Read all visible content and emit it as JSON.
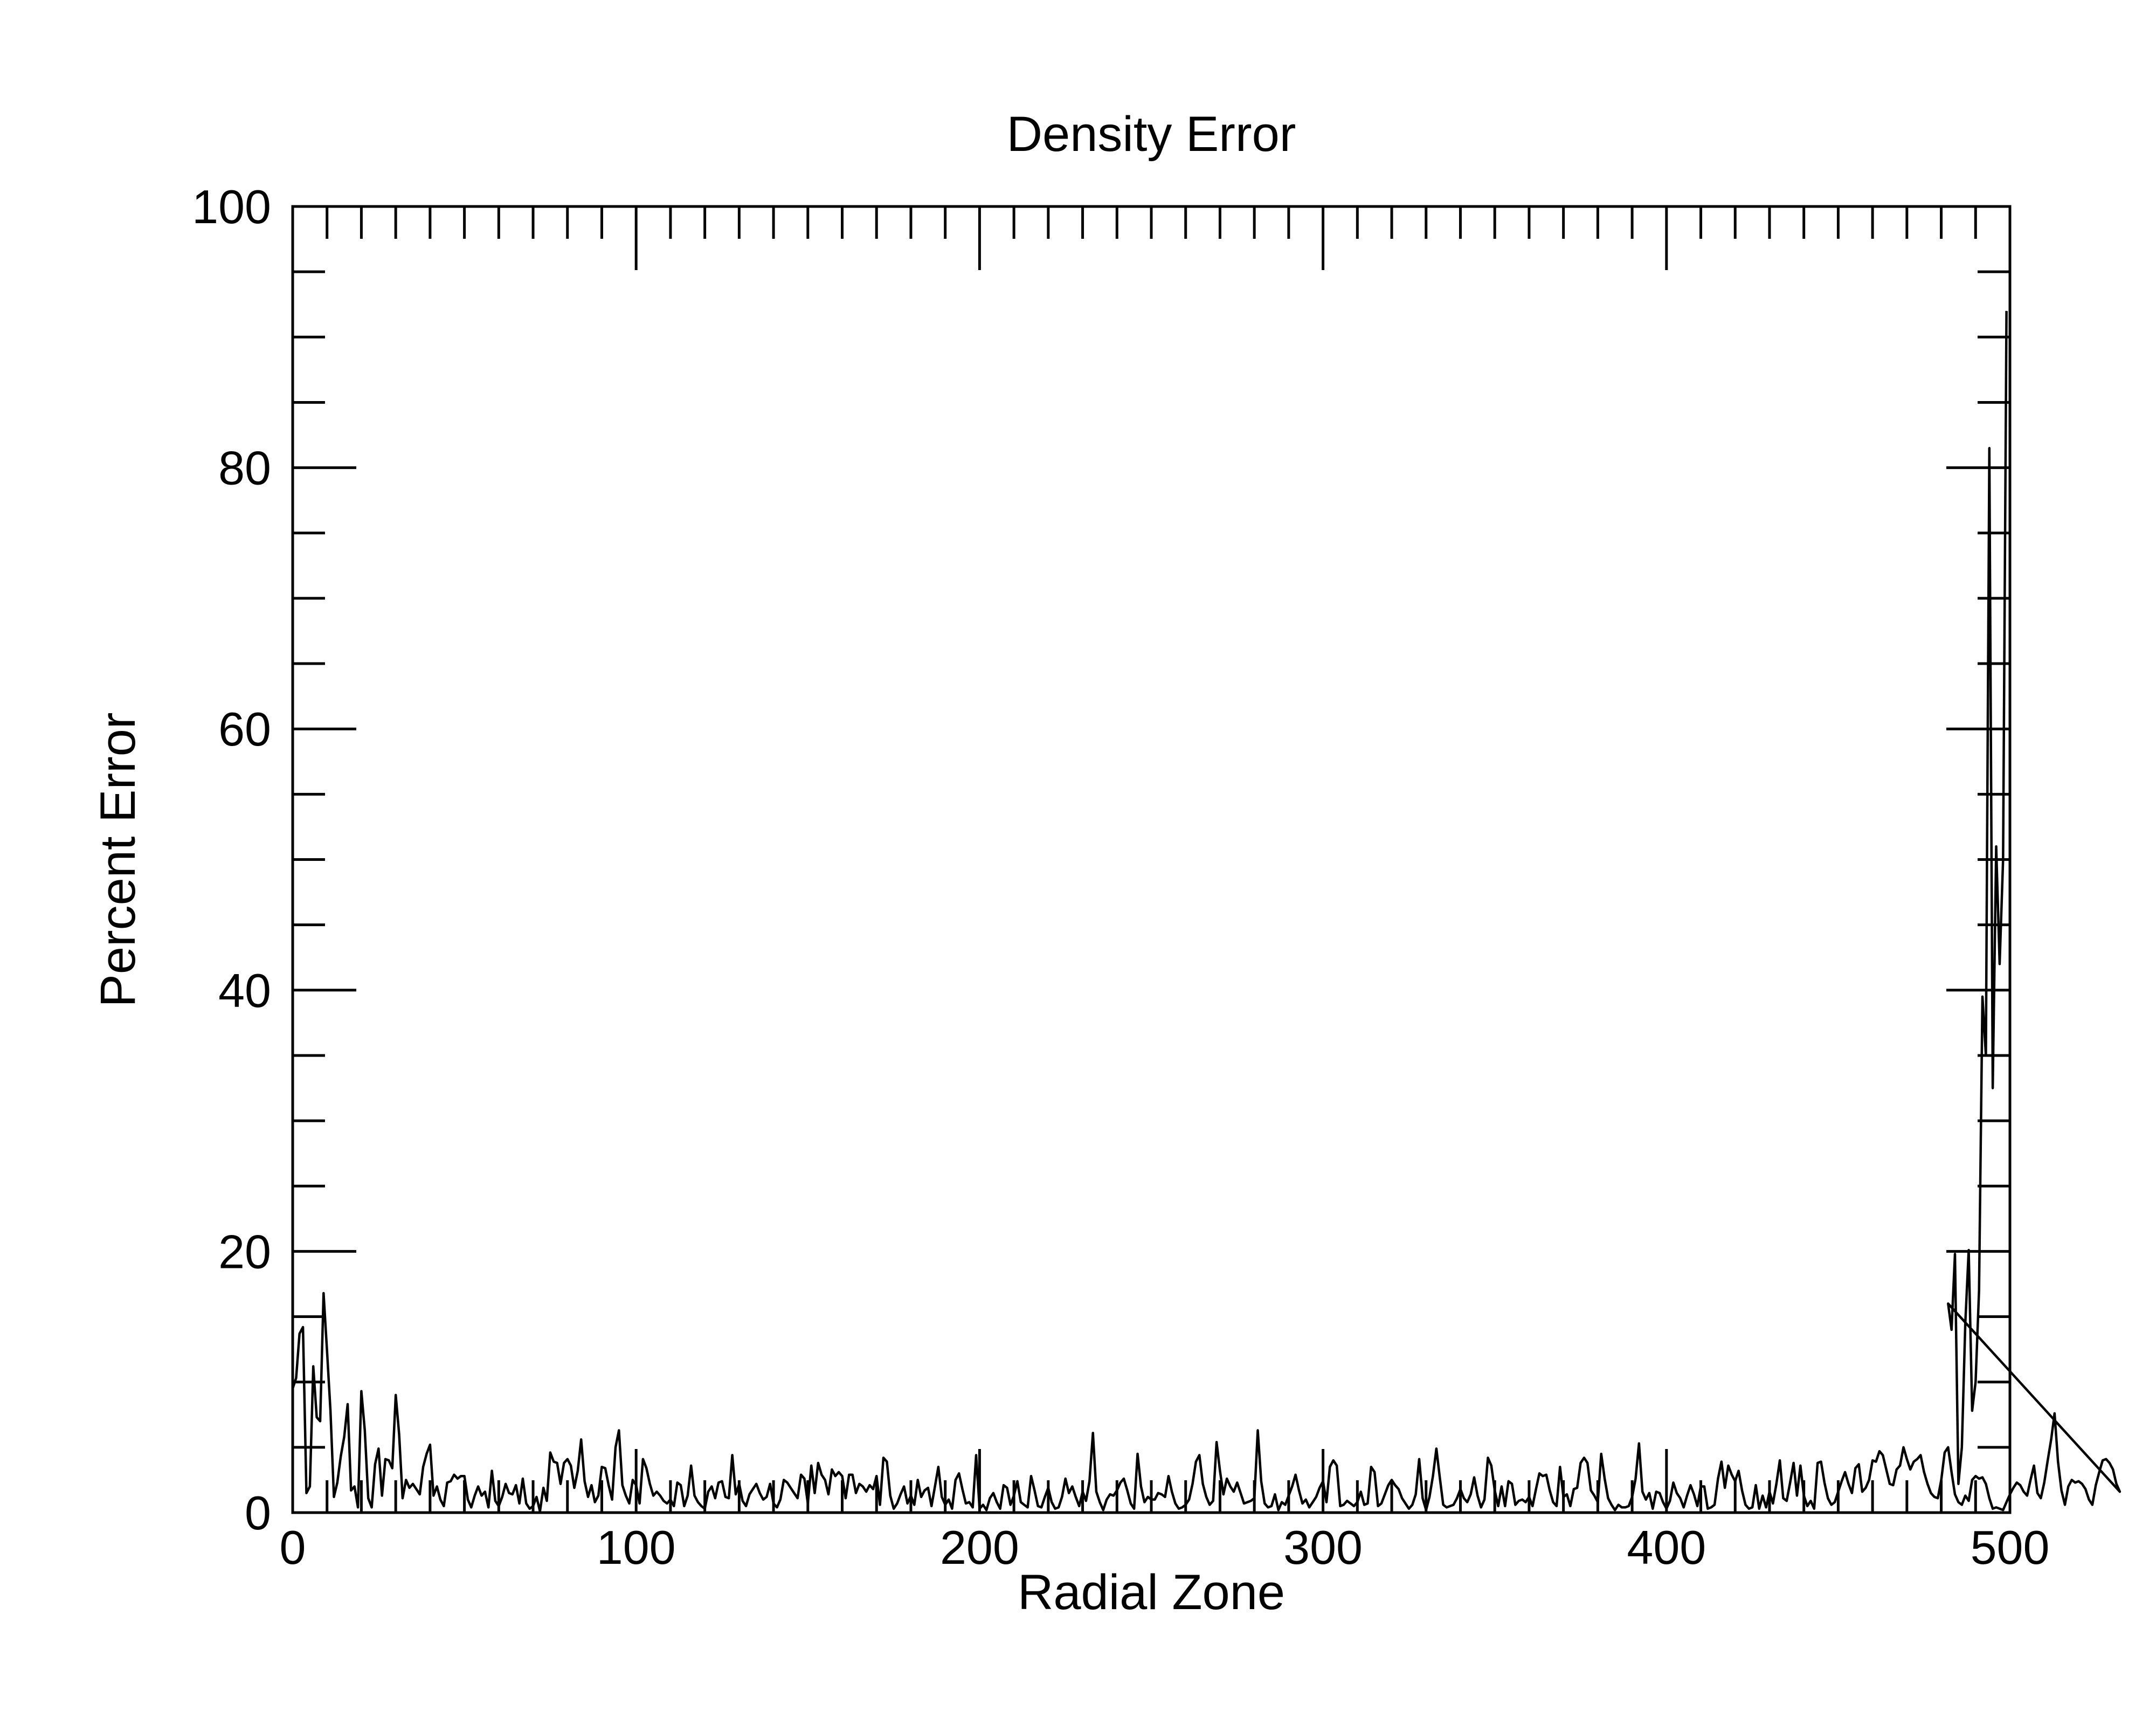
{
  "chart_data": {
    "type": "line",
    "title": "Density Error",
    "xlabel": "Radial Zone",
    "ylabel": "Percent Error",
    "xlim": [
      0,
      500
    ],
    "ylim": [
      0,
      100
    ],
    "x_ticks": [
      0,
      100,
      200,
      300,
      400,
      500
    ],
    "x_tick_labels": [
      "0",
      "100",
      "200",
      "300",
      "400",
      "500"
    ],
    "x_minor_step": 10,
    "y_ticks": [
      0,
      20,
      40,
      60,
      80,
      100
    ],
    "y_tick_labels": [
      "0",
      "20",
      "40",
      "60",
      "80",
      "100"
    ],
    "y_minor_step": 5,
    "grid": false,
    "legend": "none",
    "line_color": "#000000",
    "series": [
      {
        "x_start": 0,
        "x_step": 1,
        "values": [
          9.5,
          10.3,
          13.7,
          14.2,
          1.5,
          2.0,
          11.2,
          7.3,
          7.0,
          16.8,
          12.4,
          7.8,
          1.2,
          2.3,
          4.3,
          5.8,
          8.3,
          1.7,
          2.0,
          0.4,
          9.3,
          6.3,
          1.1,
          0.4,
          3.7,
          4.9,
          1.3,
          4.1,
          4.0,
          3.4,
          9.0,
          6.0,
          1.1,
          2.5,
          1.9,
          2.2,
          1.8,
          1.4,
          3.5,
          4.5,
          5.2,
          1.3,
          2.0,
          1.0,
          0.5,
          2.3,
          2.4,
          2.9,
          2.6,
          2.8,
          2.8,
          1.0,
          0.4,
          1.3,
          2.0,
          1.3,
          1.6,
          0.4,
          3.2,
          0.9,
          0.5,
          1.2,
          2.2,
          1.5,
          1.4,
          2.1,
          0.7,
          2.6,
          0.7,
          0.3,
          0.5,
          1.2,
          0.1,
          1.9,
          0.9,
          4.6,
          3.9,
          3.8,
          2.2,
          3.8,
          4.1,
          3.6,
          1.9,
          3.2,
          5.6,
          2.4,
          1.2,
          2.1,
          0.8,
          1.3,
          3.5,
          3.4,
          2.1,
          1.0,
          5.0,
          6.3,
          2.1,
          1.3,
          0.7,
          2.5,
          2.1,
          0.7,
          4.1,
          3.4,
          2.2,
          1.3,
          1.6,
          1.3,
          0.9,
          0.7,
          1.0,
          0.5,
          2.3,
          2.1,
          0.5,
          1.3,
          3.6,
          1.3,
          0.8,
          0.5,
          0.3,
          1.6,
          2.0,
          1.1,
          2.3,
          2.4,
          1.2,
          1.1,
          4.4,
          1.4,
          2.2,
          0.9,
          0.5,
          1.4,
          1.8,
          2.2,
          1.5,
          1.0,
          1.2,
          2.2,
          0.7,
          0.4,
          1.0,
          2.5,
          2.3,
          1.9,
          1.5,
          1.1,
          2.9,
          2.6,
          0.7,
          3.6,
          1.5,
          3.8,
          2.9,
          2.5,
          1.4,
          3.3,
          2.8,
          3.1,
          2.8,
          1.1,
          2.9,
          2.9,
          1.5,
          2.2,
          2.0,
          1.6,
          2.1,
          1.8,
          2.8,
          0.6,
          4.2,
          3.9,
          1.3,
          0.3,
          0.7,
          1.4,
          2.0,
          0.7,
          1.3,
          0.6,
          2.5,
          1.2,
          1.7,
          1.9,
          0.5,
          2.0,
          3.5,
          1.2,
          0.6,
          1.0,
          0.3,
          2.5,
          3.0,
          1.8,
          0.7,
          0.8,
          0.4,
          4.4,
          0.3,
          0.6,
          0.2,
          1.1,
          1.5,
          0.8,
          0.3,
          2.1,
          1.9,
          0.6,
          1.3,
          2.4,
          0.8,
          0.6,
          0.4,
          2.8,
          1.7,
          0.5,
          0.4,
          1.2,
          1.9,
          0.8,
          0.3,
          0.4,
          1.2,
          2.6,
          1.5,
          2.0,
          1.2,
          0.5,
          1.6,
          0.9,
          2.4,
          6.1,
          1.6,
          0.8,
          0.2,
          1.0,
          1.4,
          1.3,
          1.7,
          2.3,
          2.6,
          1.7,
          0.7,
          0.3,
          4.5,
          2.0,
          0.8,
          1.2,
          1.0,
          1.0,
          1.5,
          1.4,
          1.2,
          2.8,
          1.6,
          0.7,
          0.3,
          0.4,
          0.6,
          1.0,
          2.2,
          3.9,
          4.4,
          2.2,
          1.2,
          0.6,
          0.9,
          5.4,
          3.2,
          1.4,
          2.6,
          2.0,
          1.6,
          2.3,
          1.5,
          0.7,
          0.8,
          0.9,
          1.1,
          6.3,
          2.4,
          0.7,
          0.4,
          0.5,
          1.4,
          0.2,
          0.8,
          0.6,
          1.3,
          2.0,
          2.9,
          1.7,
          0.7,
          1.0,
          0.4,
          0.8,
          1.2,
          1.9,
          2.4,
          0.8,
          3.5,
          4.0,
          3.6,
          0.5,
          0.6,
          0.9,
          0.7,
          0.5,
          0.8,
          1.6,
          0.6,
          0.7,
          3.5,
          3.1,
          0.5,
          0.7,
          1.4,
          2.1,
          2.5,
          2.1,
          1.8,
          1.1,
          0.7,
          0.3,
          0.6,
          1.4,
          4.1,
          1.1,
          0.2,
          1.2,
          2.8,
          4.9,
          2.7,
          0.6,
          0.4,
          0.5,
          0.6,
          1.1,
          1.8,
          1.1,
          0.8,
          1.4,
          2.7,
          1.3,
          0.4,
          1.0,
          4.2,
          3.6,
          1.7,
          0.5,
          2.0,
          0.5,
          2.4,
          2.2,
          0.6,
          0.9,
          1.0,
          0.8,
          1.2,
          0.5,
          1.8,
          3.0,
          2.8,
          2.9,
          1.7,
          0.8,
          0.5,
          3.5,
          1.2,
          1.4,
          0.5,
          1.8,
          1.9,
          3.8,
          4.2,
          3.8,
          1.7,
          1.3,
          0.8,
          4.5,
          2.6,
          1.1,
          0.6,
          0.2,
          0.6,
          0.4,
          0.4,
          0.5,
          1.2,
          2.6,
          5.3,
          1.6,
          1.0,
          1.5,
          0.3,
          1.6,
          1.5,
          0.8,
          0.3,
          0.9,
          2.3,
          1.5,
          1.1,
          0.4,
          1.3,
          2.1,
          1.4,
          0.5,
          2.0,
          2.0,
          0.3,
          0.4,
          0.6,
          2.6,
          3.9,
          1.9,
          3.6,
          2.9,
          2.4,
          3.2,
          1.7,
          0.6,
          0.3,
          0.4,
          2.1,
          0.3,
          1.3,
          0.4,
          1.6,
          0.7,
          2.2,
          4.0,
          1.1,
          0.9,
          2.3,
          3.8,
          1.3,
          3.6,
          1.3,
          0.5,
          0.9,
          0.3,
          3.8,
          3.9,
          2.3,
          1.1,
          0.6,
          0.8,
          1.6,
          2.4,
          3.1,
          2.2,
          1.5,
          3.4,
          3.7,
          1.6,
          1.9,
          2.5,
          4.0,
          3.9,
          4.7,
          4.4,
          3.3,
          2.2,
          2.1,
          3.3,
          3.6,
          5.0,
          4.1,
          3.3,
          3.9,
          4.1,
          4.4,
          3.1,
          2.2,
          1.5,
          1.2,
          1.1,
          2.5,
          4.6,
          5.0,
          3.1,
          1.4,
          0.8,
          0.6,
          1.3,
          0.9,
          2.5,
          2.8,
          2.6,
          2.7,
          2.2,
          1.1,
          0.3,
          0.4,
          0.3,
          0.2,
          0.8,
          1.4,
          1.9,
          2.3,
          2.1,
          1.6,
          1.3,
          2.5,
          3.6,
          1.5,
          1.1,
          2.3,
          4.0,
          5.6,
          7.6,
          3.9,
          1.7,
          0.6,
          2.0,
          2.5,
          2.3,
          2.4,
          2.2,
          1.8,
          1.0,
          0.6,
          2.1,
          3.1,
          4.0,
          4.1,
          3.8,
          3.3,
          2.2,
          1.6
        ]
      }
    ],
    "tail_points": [
      [
        482,
        16.0
      ],
      [
        483,
        14.0
      ],
      [
        484,
        19.8
      ],
      [
        485,
        2.2
      ],
      [
        486,
        5.0
      ],
      [
        487,
        14.5
      ],
      [
        488,
        20.1
      ],
      [
        489,
        7.8
      ],
      [
        490,
        10.0
      ],
      [
        491,
        17.0
      ],
      [
        492,
        39.5
      ],
      [
        493,
        35.0
      ],
      [
        494,
        81.5
      ],
      [
        495,
        32.5
      ],
      [
        496,
        51.0
      ],
      [
        497,
        42.0
      ],
      [
        498,
        50.0
      ],
      [
        499,
        92.0
      ]
    ]
  }
}
